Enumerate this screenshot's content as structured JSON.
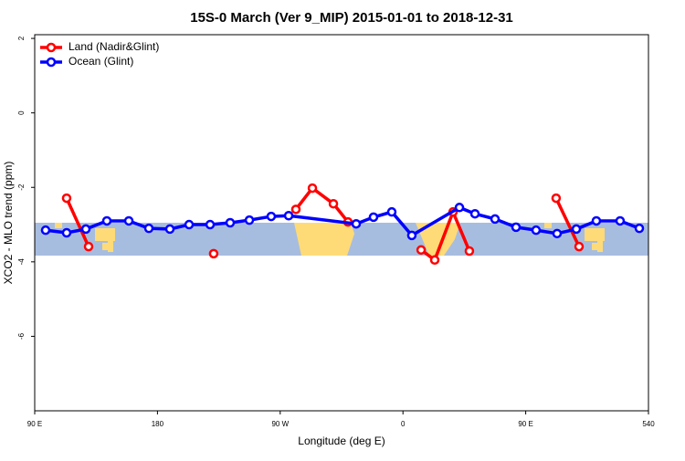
{
  "chart_data": {
    "type": "line",
    "title": "15S-0 March (Ver 9_MIP)   2015-01-01 to 2018-12-31",
    "xlabel": "Longitude (deg E)",
    "ylabel": "XCO2 - MLO trend (ppm)",
    "xlim": [
      90,
      540
    ],
    "ylim": [
      -8,
      2.1
    ],
    "xticks": [
      {
        "value": 90,
        "label": "90 E"
      },
      180,
      {
        "value": 270,
        "label": "90 W"
      },
      {
        "value": 360,
        "label": "0"
      },
      {
        "value": 450,
        "label": "90 E"
      },
      540
    ],
    "yticks": [
      2,
      0,
      -2,
      -4,
      -6
    ],
    "legend": "top-left",
    "series": [
      {
        "name": "Land (Nadir&Glint)",
        "color": "#ff0000",
        "x": [
          113.4,
          129.5,
          null,
          221.2,
          null,
          281.5,
          293.6,
          309.0,
          319.7,
          null,
          373.3,
          383.3,
          396.7,
          408.7,
          null,
          472.3,
          489.1
        ],
        "values": [
          -2.29,
          -3.59,
          null,
          -3.78,
          null,
          -2.59,
          -2.02,
          -2.44,
          -2.93,
          null,
          -3.68,
          -3.95,
          -2.66,
          -3.71,
          null,
          -2.29,
          -3.59
        ]
      },
      {
        "name": "Ocean (Glint)",
        "color": "#0000ff",
        "x": [
          98.0,
          113.4,
          127.5,
          142.9,
          159.0,
          173.7,
          189.1,
          203.2,
          218.6,
          233.3,
          247.4,
          263.4,
          276.2,
          325.7,
          338.4,
          351.8,
          366.5,
          401.4,
          412.8,
          427.5,
          442.9,
          457.6,
          473.0,
          487.1,
          501.8,
          519.2,
          533.3
        ],
        "values": [
          -3.15,
          -3.22,
          -3.12,
          -2.9,
          -2.9,
          -3.1,
          -3.12,
          -3.0,
          -3.0,
          -2.95,
          -2.88,
          -2.78,
          -2.76,
          -2.98,
          -2.8,
          -2.66,
          -3.29,
          -2.54,
          -2.71,
          -2.85,
          -3.07,
          -3.15,
          -3.24,
          -3.12,
          -2.9,
          -2.9,
          -3.1
        ]
      }
    ]
  }
}
